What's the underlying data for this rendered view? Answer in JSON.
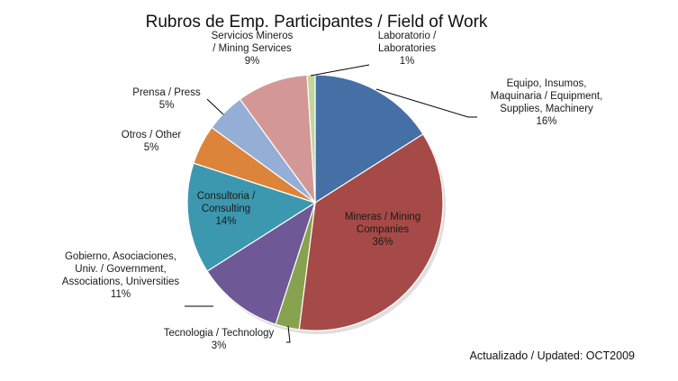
{
  "chart_data": {
    "type": "pie",
    "title": "Rubros de Emp. Participantes / Field of Work",
    "start_angle_deg": 0,
    "direction": "clockwise",
    "slices": [
      {
        "label": [
          "Equipo, Insumos,",
          "Maquinaria / Equipment,",
          "Supplies, Machinery"
        ],
        "percent_label": "16%",
        "value": 16,
        "color": "#4470A6"
      },
      {
        "label": [
          "Mineras / Mining",
          "Companies"
        ],
        "percent_label": "36%",
        "value": 36,
        "color": "#A64A47"
      },
      {
        "label": [
          "Tecnologia / Technology"
        ],
        "percent_label": "3%",
        "value": 3,
        "color": "#87A24E"
      },
      {
        "label": [
          "Gobierno, Asociaciones,",
          "Univ. / Government,",
          "Associations, Universities"
        ],
        "percent_label": "11%",
        "value": 11,
        "color": "#6F5896"
      },
      {
        "label": [
          "Consultoria /",
          "Consulting"
        ],
        "percent_label": "14%",
        "value": 14,
        "color": "#3C98AE"
      },
      {
        "label": [
          "Otros / Other"
        ],
        "percent_label": "5%",
        "value": 5,
        "color": "#DC843A"
      },
      {
        "label": [
          "Prensa / Press"
        ],
        "percent_label": "5%",
        "value": 5,
        "color": "#95AED5"
      },
      {
        "label": [
          "Servicios Mineros",
          "/ Mining Services"
        ],
        "percent_label": "9%",
        "value": 9,
        "color": "#D39896"
      },
      {
        "label": [
          "Laboratorio /",
          "Laboratories"
        ],
        "percent_label": "1%",
        "value": 1,
        "color": "#C2D69B"
      }
    ]
  },
  "footnote": "Actualizado / Updated: OCT2009"
}
